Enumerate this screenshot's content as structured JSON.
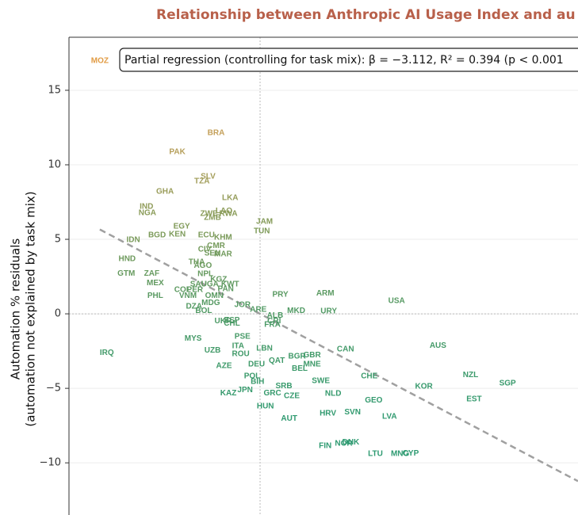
{
  "chart_data": {
    "type": "scatter",
    "title": "Relationship between Anthropic AI Usage Index and au",
    "y_label": [
      "Automation % residuals",
      "(automation not explained by task mix)"
    ],
    "annotation": "Partial regression (controlling for task mix): β = −3.112, R² = 0.394 (p < 0.001",
    "xlim": [
      -2.17,
      3.61
    ],
    "ylim": [
      -13.5,
      18.56
    ],
    "yticks": [
      {
        "value": -10,
        "label": "−10"
      },
      {
        "value": -5,
        "label": "−5"
      },
      0,
      5,
      10,
      15
    ],
    "grid": true,
    "reference_lines": {
      "x": 0,
      "y": 0
    },
    "trend": {
      "x": [
        -1.82,
        3.61
      ],
      "y": [
        5.66,
        -11.23
      ],
      "color": "#a0a0a0"
    },
    "colormap": [
      "#2a9a74",
      "#2f9a70",
      "#4a9a66",
      "#7f9a58",
      "#c4a05a",
      "#eb9a3c"
    ],
    "labels": [
      "MOZ",
      "BRA",
      "PAK",
      "SLV",
      "TZA",
      "GHA",
      "LKA",
      "IND",
      "NGA",
      "LAO",
      "ZWE",
      "ZMB",
      "RWA",
      "JAM",
      "EGY",
      "TUN",
      "BGD",
      "KEN",
      "ECU",
      "KHM",
      "IDN",
      "CMR",
      "CIV",
      "SEN",
      "MAR",
      "HND",
      "THA",
      "AGO",
      "GTM",
      "ZAF",
      "NPL",
      "MEX",
      "KGZ",
      "SAU",
      "UGA",
      "KWT",
      "COL",
      "PER",
      "PAN",
      "PRY",
      "ARM",
      "PHL",
      "VNM",
      "OMN",
      "USA",
      "MDG",
      "DZA",
      "BOL",
      "JOR",
      "ARE",
      "MKD",
      "URY",
      "ALB",
      "CRI",
      "FRA",
      "UKR",
      "ESP",
      "CHL",
      "MYS",
      "PSE",
      "AUS",
      "ITA",
      "LBN",
      "UZB",
      "CAN",
      "ROU",
      "BGR",
      "GBR",
      "QAT",
      "DEU",
      "AZE",
      "MNE",
      "BEL",
      "CHE",
      "NZL",
      "POL",
      "SGP",
      "BIH",
      "SWE",
      "SRB",
      "KOR",
      "JPN",
      "KAZ",
      "GRC",
      "NLD",
      "CZE",
      "EST",
      "GEO",
      "HUN",
      "HRV",
      "SVN",
      "LVA",
      "AUT",
      "DNK",
      "NOR",
      "FIN",
      "LTU",
      "MNG",
      "CYP",
      "IRQ"
    ],
    "x": [
      -1.82,
      -0.5,
      -0.94,
      -0.59,
      -0.66,
      -1.08,
      -0.34,
      -1.29,
      -1.28,
      -0.41,
      -0.58,
      -0.54,
      -0.36,
      0.05,
      -0.89,
      0.02,
      -1.17,
      -0.94,
      -0.61,
      -0.42,
      -1.44,
      -0.5,
      -0.63,
      -0.54,
      -0.42,
      -1.51,
      -0.72,
      -0.65,
      -1.52,
      -1.23,
      -0.62,
      -1.19,
      -0.47,
      -0.7,
      -0.57,
      -0.34,
      -0.88,
      -0.74,
      -0.39,
      0.23,
      0.74,
      -1.19,
      -0.82,
      -0.52,
      1.55,
      -0.56,
      -0.75,
      -0.64,
      -0.2,
      -0.02,
      0.41,
      0.78,
      0.17,
      0.16,
      0.14,
      -0.42,
      -0.32,
      -0.32,
      -0.76,
      -0.2,
      2.02,
      -0.25,
      0.05,
      -0.54,
      0.97,
      -0.22,
      0.42,
      0.59,
      0.19,
      -0.04,
      -0.41,
      0.59,
      0.45,
      1.24,
      2.39,
      -0.09,
      2.81,
      -0.03,
      0.69,
      0.27,
      1.86,
      -0.17,
      -0.36,
      0.14,
      0.83,
      0.36,
      2.43,
      1.29,
      0.06,
      0.77,
      1.05,
      1.47,
      0.33,
      1.03,
      0.95,
      0.74,
      1.31,
      1.59,
      1.71,
      -1.74
    ],
    "values": [
      16.97,
      12.13,
      10.85,
      9.2,
      8.88,
      8.19,
      7.77,
      7.18,
      6.76,
      6.91,
      6.7,
      6.44,
      6.7,
      6.17,
      5.85,
      5.53,
      5.27,
      5.32,
      5.27,
      5.11,
      4.95,
      4.57,
      4.31,
      4.04,
      3.99,
      3.67,
      3.46,
      3.24,
      2.71,
      2.71,
      2.66,
      2.07,
      2.29,
      1.97,
      1.97,
      1.97,
      1.6,
      1.6,
      1.65,
      1.28,
      1.38,
      1.22,
      1.22,
      1.22,
      0.85,
      0.74,
      0.48,
      0.21,
      0.59,
      0.27,
      0.21,
      0.16,
      -0.11,
      -0.48,
      -0.74,
      -0.48,
      -0.43,
      -0.64,
      -1.65,
      -1.54,
      -2.13,
      -2.18,
      -2.34,
      -2.45,
      -2.39,
      -2.71,
      -2.87,
      -2.77,
      -3.14,
      -3.4,
      -3.51,
      -3.4,
      -3.67,
      -4.2,
      -4.1,
      -4.2,
      -4.68,
      -4.57,
      -4.52,
      -4.84,
      -4.89,
      -5.11,
      -5.32,
      -5.32,
      -5.37,
      -5.53,
      -5.74,
      -5.8,
      -6.22,
      -6.7,
      -6.6,
      -6.91,
      -7.02,
      -8.62,
      -8.72,
      -8.88,
      -9.41,
      -9.41,
      -9.36,
      -2.61
    ]
  }
}
